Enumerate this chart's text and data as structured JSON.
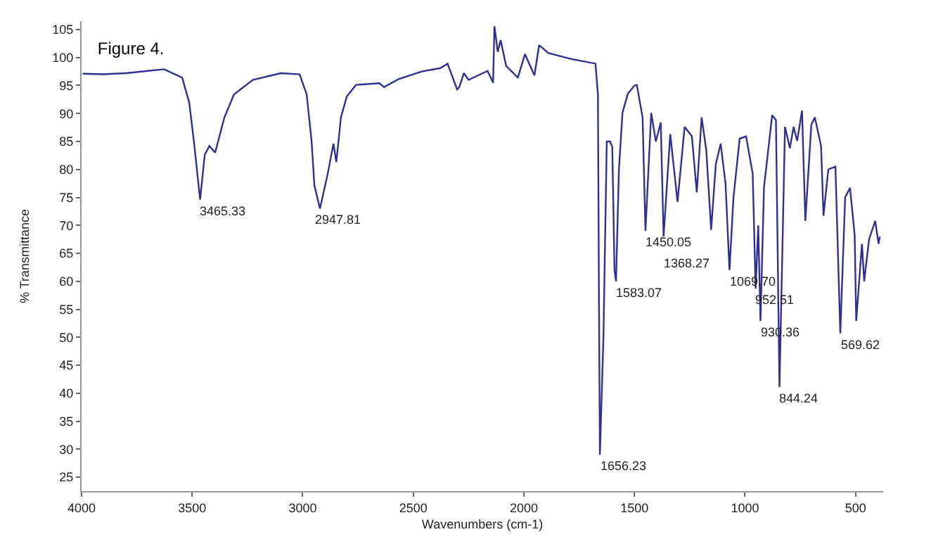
{
  "chart_data": {
    "type": "line",
    "title": "Figure 4.",
    "xlabel": "Wavenumbers (cm-1)",
    "ylabel": "% Transmittance",
    "x": [
      3995,
      3900,
      3800,
      3700,
      3627,
      3545,
      3513,
      3492,
      3464,
      3443,
      3422,
      3396,
      3354,
      3311,
      3226,
      3099,
      3014,
      2982,
      2960,
      2947,
      2922,
      2887,
      2861,
      2848,
      2827,
      2801,
      2759,
      2653,
      2632,
      2568,
      2462,
      2377,
      2345,
      2302,
      2292,
      2271,
      2250,
      2164,
      2139,
      2133,
      2118,
      2105,
      2080,
      2027,
      1995,
      1952,
      1931,
      1889,
      1782,
      1676,
      1665,
      1660,
      1656,
      1640,
      1625,
      1610,
      1600,
      1590,
      1583,
      1570,
      1554,
      1530,
      1500,
      1489,
      1463,
      1450,
      1424,
      1403,
      1381,
      1368,
      1338,
      1305,
      1273,
      1240,
      1218,
      1196,
      1175,
      1153,
      1132,
      1110,
      1088,
      1070,
      1052,
      1024,
      995,
      965,
      952,
      940,
      930,
      914,
      877,
      860,
      844,
      819,
      797,
      780,
      764,
      742,
      727,
      700,
      684,
      656,
      645,
      623,
      591,
      569,
      547,
      525,
      504,
      497,
      471,
      461,
      439,
      411,
      396,
      390
    ],
    "values": [
      97.1,
      97.0,
      97.2,
      97.6,
      97.9,
      96.4,
      91.9,
      85.0,
      74.6,
      82.6,
      84.2,
      83.0,
      89.3,
      93.4,
      96.0,
      97.2,
      97.0,
      93.4,
      85.1,
      77.1,
      73.0,
      79.2,
      84.6,
      81.3,
      89.3,
      93.0,
      95.1,
      95.4,
      94.7,
      96.1,
      97.5,
      98.1,
      98.9,
      94.3,
      94.7,
      97.2,
      96.0,
      97.6,
      95.5,
      105.6,
      101.0,
      103.1,
      98.5,
      96.4,
      100.6,
      96.8,
      102.2,
      100.8,
      99.7,
      98.9,
      93.4,
      55.0,
      29.0,
      50.0,
      85.0,
      85.0,
      84.0,
      62.0,
      60.0,
      80.0,
      90.1,
      93.5,
      95.0,
      95.1,
      89.3,
      69.0,
      90.1,
      85.0,
      88.4,
      68.0,
      86.3,
      74.2,
      87.6,
      85.9,
      75.9,
      89.3,
      83.4,
      69.2,
      80.9,
      84.6,
      77.5,
      62.0,
      75.0,
      85.5,
      85.9,
      79.2,
      58.7,
      70.0,
      52.9,
      76.8,
      89.7,
      88.8,
      41.1,
      87.6,
      83.8,
      87.6,
      85.1,
      90.5,
      70.8,
      88.0,
      89.3,
      84.2,
      71.7,
      80.0,
      80.5,
      50.7,
      75.0,
      76.7,
      68.3,
      52.9,
      66.7,
      60.0,
      67.5,
      70.8,
      66.7,
      68.0
    ],
    "color": "#2e3192",
    "xlim": [
      4000,
      375
    ],
    "ylim": [
      22.5,
      106.5
    ],
    "xticks": [
      4000,
      3500,
      3000,
      2500,
      2000,
      1500,
      1000,
      500
    ],
    "yticks": [
      25,
      30,
      35,
      40,
      45,
      50,
      55,
      60,
      65,
      70,
      75,
      80,
      85,
      90,
      95,
      100,
      105
    ],
    "grid": false,
    "marker": "none",
    "line_style": "solid",
    "annotations": [
      {
        "text": "3465.33",
        "x": 3465,
        "y": 74.6
      },
      {
        "text": "2947.81",
        "x": 2947,
        "y": 73.0
      },
      {
        "text": "1656.23",
        "x": 1656,
        "y": 29.0
      },
      {
        "text": "1583.07",
        "x": 1583,
        "y": 60.0
      },
      {
        "text": "1450.05",
        "x": 1450,
        "y": 69.0
      },
      {
        "text": "1368.27",
        "x": 1368,
        "y": 68.0
      },
      {
        "text": "1069.70",
        "x": 1070,
        "y": 62.0
      },
      {
        "text": "952.51",
        "x": 952,
        "y": 58.7
      },
      {
        "text": "930.36",
        "x": 930,
        "y": 52.9
      },
      {
        "text": "844.24",
        "x": 844,
        "y": 41.1
      },
      {
        "text": "569.62",
        "x": 569,
        "y": 50.7
      }
    ]
  }
}
